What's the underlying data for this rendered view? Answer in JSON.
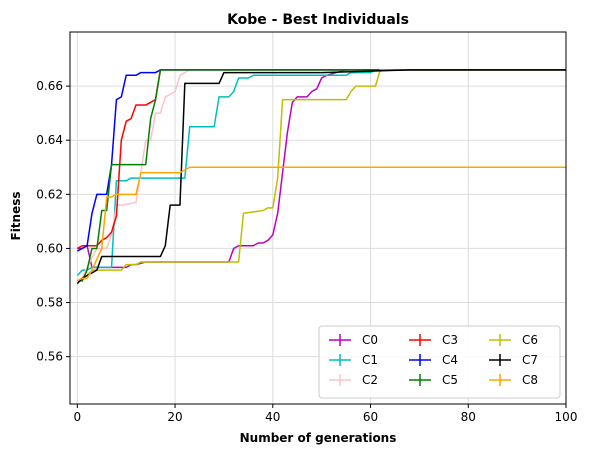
{
  "chart_data": {
    "type": "line",
    "title": "Kobe - Best Individuals",
    "xlabel": "Number of generations",
    "ylabel": "Fitness",
    "xlim": [
      -1.5,
      100
    ],
    "ylim": [
      0.5425,
      0.68
    ],
    "xticks": [
      0,
      20,
      40,
      60,
      80,
      100
    ],
    "yticks": [
      0.56,
      0.58,
      0.6,
      0.62,
      0.64,
      0.66
    ],
    "ytick_labels": [
      "0.56",
      "0.58",
      "0.60",
      "0.62",
      "0.64",
      "0.66"
    ],
    "grid": true,
    "legend": {
      "placement": "bottom-right",
      "columns": 3
    },
    "series": [
      {
        "name": "C0",
        "color": "#bf00bf",
        "points": [
          [
            0,
            0.6
          ],
          [
            1,
            0.6
          ],
          [
            2,
            0.601
          ],
          [
            3,
            0.593
          ],
          [
            10,
            0.593
          ],
          [
            11,
            0.594
          ],
          [
            12,
            0.594
          ],
          [
            14,
            0.595
          ],
          [
            20,
            0.595
          ],
          [
            27,
            0.595
          ],
          [
            31,
            0.595
          ],
          [
            32,
            0.6
          ],
          [
            33,
            0.601
          ],
          [
            36,
            0.601
          ],
          [
            37,
            0.602
          ],
          [
            38,
            0.602
          ],
          [
            39,
            0.603
          ],
          [
            40,
            0.605
          ],
          [
            41,
            0.613
          ],
          [
            42,
            0.628
          ],
          [
            43,
            0.643
          ],
          [
            44,
            0.654
          ],
          [
            45,
            0.656
          ],
          [
            47,
            0.656
          ],
          [
            48,
            0.658
          ],
          [
            49,
            0.659
          ],
          [
            50,
            0.663
          ],
          [
            51,
            0.664
          ],
          [
            53,
            0.665
          ],
          [
            55,
            0.666
          ],
          [
            100,
            0.666
          ]
        ]
      },
      {
        "name": "C1",
        "color": "#00bfbf",
        "points": [
          [
            0,
            0.59
          ],
          [
            1,
            0.592
          ],
          [
            2,
            0.592
          ],
          [
            3,
            0.593
          ],
          [
            7,
            0.593
          ],
          [
            8,
            0.625
          ],
          [
            10,
            0.625
          ],
          [
            11,
            0.626
          ],
          [
            22,
            0.626
          ],
          [
            23,
            0.645
          ],
          [
            28,
            0.645
          ],
          [
            29,
            0.656
          ],
          [
            31,
            0.656
          ],
          [
            32,
            0.658
          ],
          [
            33,
            0.663
          ],
          [
            35,
            0.663
          ],
          [
            36,
            0.664
          ],
          [
            55,
            0.664
          ],
          [
            56,
            0.665
          ],
          [
            60,
            0.665
          ],
          [
            61,
            0.666
          ],
          [
            100,
            0.666
          ]
        ]
      },
      {
        "name": "C2",
        "color": "#ffc0cb",
        "points": [
          [
            0,
            0.588
          ],
          [
            1,
            0.589
          ],
          [
            2,
            0.593
          ],
          [
            4,
            0.6
          ],
          [
            6,
            0.6
          ],
          [
            7,
            0.605
          ],
          [
            8,
            0.616
          ],
          [
            9,
            0.616
          ],
          [
            12,
            0.617
          ],
          [
            13,
            0.628
          ],
          [
            14,
            0.64
          ],
          [
            15,
            0.64
          ],
          [
            16,
            0.65
          ],
          [
            17,
            0.65
          ],
          [
            18,
            0.656
          ],
          [
            19,
            0.657
          ],
          [
            20,
            0.658
          ],
          [
            21,
            0.664
          ],
          [
            22,
            0.665
          ],
          [
            23,
            0.666
          ],
          [
            100,
            0.666
          ]
        ]
      },
      {
        "name": "C3",
        "color": "#ff0000",
        "points": [
          [
            0,
            0.6
          ],
          [
            1,
            0.601
          ],
          [
            4,
            0.601
          ],
          [
            5,
            0.603
          ],
          [
            6,
            0.604
          ],
          [
            7,
            0.606
          ],
          [
            8,
            0.612
          ],
          [
            9,
            0.64
          ],
          [
            10,
            0.647
          ],
          [
            11,
            0.648
          ],
          [
            12,
            0.653
          ],
          [
            14,
            0.653
          ],
          [
            15,
            0.654
          ],
          [
            16,
            0.655
          ],
          [
            17,
            0.666
          ],
          [
            100,
            0.666
          ]
        ]
      },
      {
        "name": "C4",
        "color": "#0000ff",
        "points": [
          [
            0,
            0.599
          ],
          [
            1,
            0.6
          ],
          [
            2,
            0.601
          ],
          [
            3,
            0.613
          ],
          [
            4,
            0.62
          ],
          [
            6,
            0.62
          ],
          [
            7,
            0.631
          ],
          [
            8,
            0.655
          ],
          [
            9,
            0.656
          ],
          [
            10,
            0.664
          ],
          [
            12,
            0.664
          ],
          [
            13,
            0.665
          ],
          [
            16,
            0.665
          ],
          [
            17,
            0.666
          ],
          [
            100,
            0.666
          ]
        ]
      },
      {
        "name": "C5",
        "color": "#008000",
        "points": [
          [
            0,
            0.588
          ],
          [
            1,
            0.588
          ],
          [
            2,
            0.592
          ],
          [
            3,
            0.6
          ],
          [
            4,
            0.6
          ],
          [
            5,
            0.614
          ],
          [
            6,
            0.614
          ],
          [
            7,
            0.631
          ],
          [
            14,
            0.631
          ],
          [
            15,
            0.648
          ],
          [
            16,
            0.655
          ],
          [
            17,
            0.666
          ],
          [
            100,
            0.666
          ]
        ]
      },
      {
        "name": "C6",
        "color": "#bfbf00",
        "points": [
          [
            0,
            0.588
          ],
          [
            1,
            0.589
          ],
          [
            2,
            0.59
          ],
          [
            3,
            0.592
          ],
          [
            9,
            0.592
          ],
          [
            10,
            0.594
          ],
          [
            12,
            0.594
          ],
          [
            13,
            0.595
          ],
          [
            33,
            0.595
          ],
          [
            34,
            0.613
          ],
          [
            38,
            0.614
          ],
          [
            39,
            0.615
          ],
          [
            40,
            0.615
          ],
          [
            41,
            0.626
          ],
          [
            42,
            0.655
          ],
          [
            43,
            0.655
          ],
          [
            55,
            0.655
          ],
          [
            56,
            0.658
          ],
          [
            57,
            0.66
          ],
          [
            61,
            0.66
          ],
          [
            62,
            0.666
          ],
          [
            100,
            0.666
          ]
        ]
      },
      {
        "name": "C7",
        "color": "#000000",
        "points": [
          [
            0,
            0.587
          ],
          [
            1,
            0.589
          ],
          [
            2,
            0.59
          ],
          [
            3,
            0.591
          ],
          [
            4,
            0.592
          ],
          [
            5,
            0.597
          ],
          [
            17,
            0.597
          ],
          [
            18,
            0.601
          ],
          [
            19,
            0.616
          ],
          [
            21,
            0.616
          ],
          [
            22,
            0.661
          ],
          [
            29,
            0.661
          ],
          [
            30,
            0.665
          ],
          [
            40,
            0.665
          ],
          [
            42,
            0.665
          ],
          [
            50,
            0.665
          ],
          [
            68,
            0.666
          ],
          [
            100,
            0.666
          ]
        ]
      },
      {
        "name": "C8",
        "color": "#ffa500",
        "points": [
          [
            0,
            0.588
          ],
          [
            1,
            0.589
          ],
          [
            2,
            0.589
          ],
          [
            3,
            0.592
          ],
          [
            5,
            0.6
          ],
          [
            6,
            0.619
          ],
          [
            7,
            0.619
          ],
          [
            8,
            0.62
          ],
          [
            12,
            0.62
          ],
          [
            13,
            0.628
          ],
          [
            20,
            0.628
          ],
          [
            21,
            0.628
          ],
          [
            22,
            0.629
          ],
          [
            23,
            0.63
          ],
          [
            100,
            0.63
          ]
        ]
      }
    ]
  }
}
